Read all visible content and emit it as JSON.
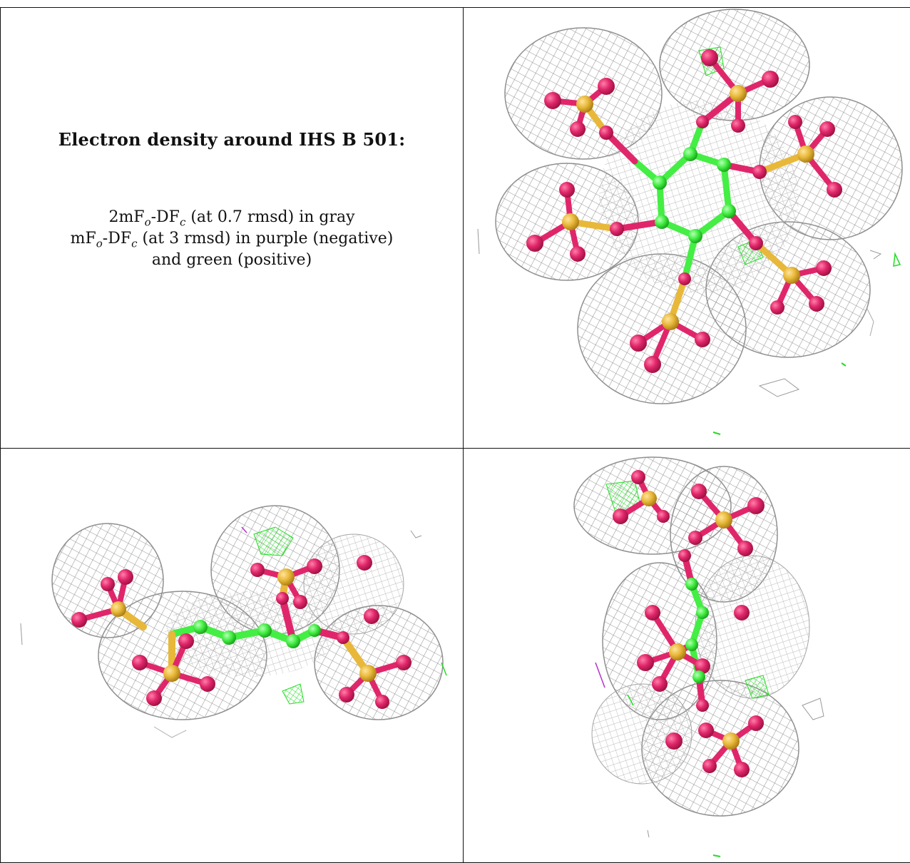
{
  "caption": {
    "title": "Electron density around IHS B 501:",
    "line1": {
      "a": "2mF",
      "sub1": "o",
      "b": "-DF",
      "sub2": "c",
      "c": " (at 0.7 rmsd) in gray"
    },
    "line2": {
      "a": "mF",
      "sub1": "o",
      "b": "-DF",
      "sub2": "c",
      "c": " (at 3 rmsd) in purple (negative)"
    },
    "line3": "and green (positive)"
  },
  "colors": {
    "mesh_gray": "#9a9a9a",
    "density_green": "#22e022",
    "density_purple": "#b033c8",
    "carbon_green": "#44ee44",
    "sulfur_yellow": "#e8b83a",
    "oxygen_pink": "#e0266a",
    "border": "#111111"
  },
  "panels": [
    {
      "id": "top-view",
      "description_icon": "molecule-structure-icon"
    },
    {
      "id": "side-view",
      "description_icon": "molecule-structure-icon"
    },
    {
      "id": "end-view",
      "description_icon": "molecule-structure-icon"
    }
  ]
}
